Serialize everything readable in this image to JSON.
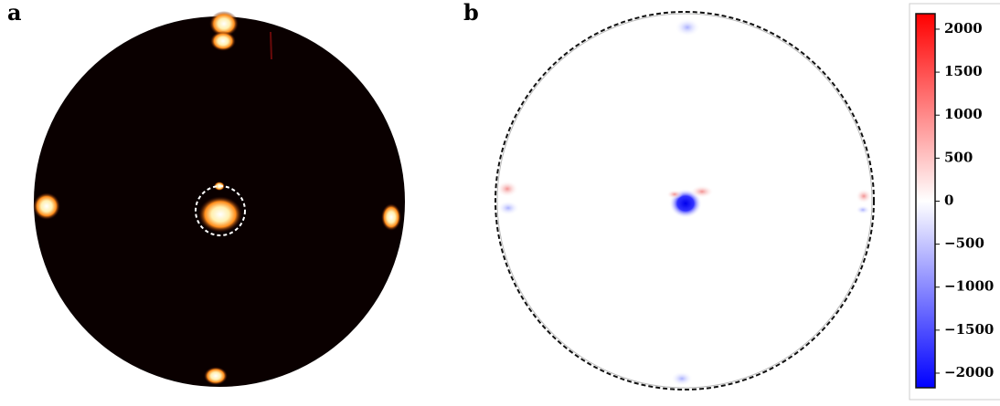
{
  "panels": [
    {
      "label": "a"
    },
    {
      "label": "b"
    }
  ],
  "colorbar": {
    "lim": [
      -2170,
      2180
    ],
    "ticks": [
      2000,
      1500,
      1000,
      500,
      0,
      {
        "value": -500,
        "label": "−500"
      },
      {
        "value": -1000,
        "label": "−1000"
      },
      {
        "value": -1500,
        "label": "−1500"
      },
      {
        "value": -2000,
        "label": "−2000"
      }
    ],
    "colors": [
      "#0000ff",
      "#ffffff",
      "#ff0000"
    ]
  }
}
